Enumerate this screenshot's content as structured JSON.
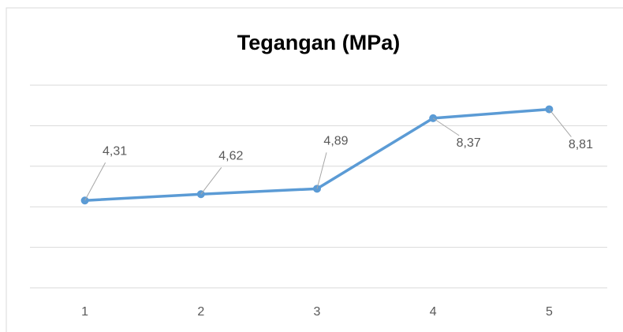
{
  "chart_data": {
    "type": "line",
    "title": "Tegangan (MPa)",
    "categories": [
      "1",
      "2",
      "3",
      "4",
      "5"
    ],
    "series": [
      {
        "name": "Tegangan (MPa)",
        "color": "#5b9bd5",
        "values": [
          4.31,
          4.62,
          4.89,
          8.37,
          8.81
        ],
        "value_labels": [
          "4,31",
          "4,62",
          "4,89",
          "8,37",
          "8,81"
        ]
      }
    ],
    "ylim": [
      0,
      10
    ],
    "yticks": [
      0,
      2,
      4,
      6,
      8,
      10
    ],
    "grid": true
  }
}
